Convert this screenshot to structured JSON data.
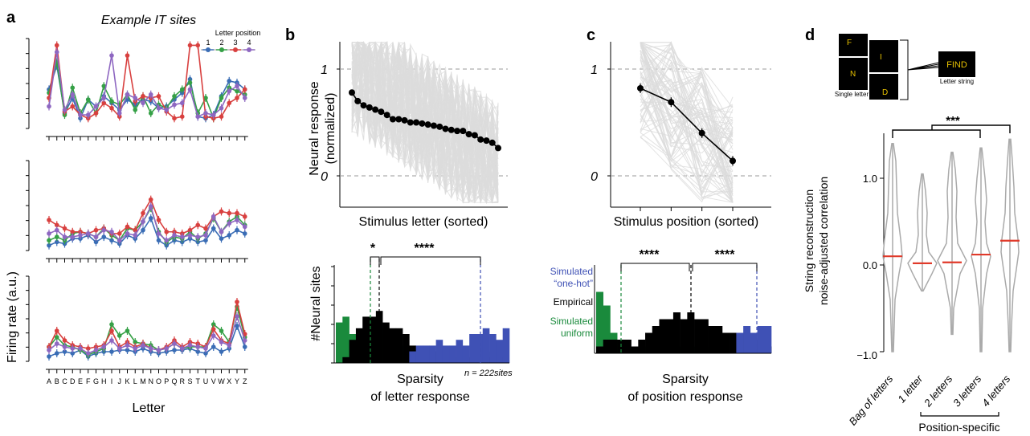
{
  "panels": {
    "a": {
      "label": "a",
      "title": "Example IT sites",
      "legend_title": "Letter position",
      "legend_numbers": [
        "1",
        "2",
        "3",
        "4"
      ],
      "ylabel": "Firing rate (a.u.)",
      "xlabel": "Letter",
      "letters": [
        "A",
        "B",
        "C",
        "D",
        "E",
        "F",
        "G",
        "H",
        "I",
        "J",
        "K",
        "L",
        "M",
        "N",
        "O",
        "P",
        "Q",
        "R",
        "S",
        "T",
        "U",
        "V",
        "W",
        "X",
        "Y",
        "Z"
      ],
      "colors": {
        "1": "#3a6db5",
        "2": "#35a046",
        "3": "#d8403f",
        "4": "#8e67c1"
      }
    },
    "b": {
      "label": "b",
      "ylabel_line1": "Neural response",
      "ylabel_line2": "(normalized)",
      "ytick_1": "1",
      "ytick_0": "0",
      "xlabel": "Stimulus letter (sorted)",
      "hist_ylabel": "#Neural sites",
      "hist_xlabel_line1": "Sparsity",
      "hist_xlabel_line2": "of letter response",
      "n_label": "n = 222sites",
      "sig1": "*",
      "sig2": "****"
    },
    "c": {
      "label": "c",
      "ytick_1": "1",
      "ytick_0": "0",
      "xlabel": "Stimulus position (sorted)",
      "hist_xlabel_line1": "Sparsity",
      "hist_xlabel_line2": "of position response",
      "legend_onehot_1": "Simulated",
      "legend_onehot_2": "“one-hot”",
      "legend_empirical": "Empirical",
      "legend_uniform_1": "Simulated",
      "legend_uniform_2": "uniform",
      "sig1": "****",
      "sig2": "****",
      "colors": {
        "onehot": "#3f51b5",
        "empirical": "#000000",
        "uniform": "#1a8a3c"
      }
    },
    "d": {
      "label": "d",
      "single_letter_label": "Single letter",
      "letter_string_label": "Letter string",
      "letters_shown": [
        "F",
        "I",
        "N",
        "D"
      ],
      "word": "FIND",
      "sig": "***",
      "ylabel_line1": "String reconstruction",
      "ylabel_line2": "noise-adjusted correlation",
      "yticks": [
        "1.0",
        "0.0",
        "−1.0"
      ],
      "categories": [
        "Bag of letters",
        "1 letter",
        "2 letters",
        "3 letters",
        "4 letters"
      ],
      "bracket_label": "Position-specific"
    }
  },
  "chart_data": [
    {
      "type": "line",
      "panel": "a",
      "title": "Example IT sites",
      "xlabel": "Letter",
      "ylabel": "Firing rate (a.u.)",
      "categories": [
        "A",
        "B",
        "C",
        "D",
        "E",
        "F",
        "G",
        "H",
        "I",
        "J",
        "K",
        "L",
        "M",
        "N",
        "O",
        "P",
        "Q",
        "R",
        "S",
        "T",
        "U",
        "V",
        "W",
        "X",
        "Y",
        "Z"
      ],
      "subplots": [
        {
          "series": [
            {
              "name": "1",
              "values": [
                5.0,
                6.4,
                3.6,
                4.5,
                3.3,
                4.4,
                4.0,
                4.6,
                4.2,
                3.8,
                4.4,
                4.1,
                4.4,
                4.3,
                3.9,
                4.0,
                4.4,
                4.8,
                5.6,
                3.4,
                3.3,
                3.5,
                4.6,
                5.5,
                5.4,
                5.0
              ]
            },
            {
              "name": "2",
              "values": [
                4.8,
                6.6,
                3.5,
                5.1,
                3.6,
                4.4,
                3.6,
                5.2,
                4.3,
                4.1,
                4.7,
                3.8,
                4.6,
                3.6,
                4.1,
                3.9,
                4.6,
                5.0,
                5.4,
                3.6,
                4.5,
                3.3,
                4.5,
                5.1,
                4.9,
                4.7
              ]
            },
            {
              "name": "3",
              "values": [
                4.5,
                7.6,
                3.7,
                4.0,
                3.5,
                3.3,
                3.6,
                4.2,
                3.9,
                3.4,
                7.0,
                4.3,
                4.6,
                4.5,
                4.6,
                3.7,
                3.3,
                3.4,
                7.6,
                7.6,
                3.4,
                3.3,
                3.4,
                4.2,
                4.5,
                5.0
              ]
            },
            {
              "name": "4",
              "values": [
                4.0,
                7.2,
                3.8,
                4.7,
                3.5,
                3.5,
                4.0,
                4.5,
                7.0,
                3.6,
                4.7,
                4.5,
                4.2,
                4.7,
                3.9,
                3.8,
                4.1,
                4.2,
                5.0,
                3.4,
                3.6,
                3.5,
                3.9,
                4.9,
                5.2,
                4.5
              ]
            }
          ]
        },
        {
          "series": [
            {
              "name": "1",
              "values": [
                3.0,
                3.2,
                3.1,
                3.4,
                3.4,
                3.6,
                3.2,
                3.5,
                3.3,
                3.1,
                3.6,
                3.4,
                3.9,
                4.6,
                3.3,
                3.0,
                3.3,
                3.2,
                3.4,
                3.2,
                3.3,
                4.0,
                3.4,
                3.6,
                3.9,
                3.7
              ]
            },
            {
              "name": "2",
              "values": [
                3.3,
                3.5,
                3.3,
                3.7,
                3.8,
                3.7,
                3.5,
                4.0,
                3.6,
                3.3,
                4.0,
                3.9,
                4.4,
                5.2,
                3.8,
                3.2,
                3.5,
                3.4,
                3.8,
                3.4,
                3.7,
                4.6,
                3.8,
                4.4,
                4.7,
                4.2
              ]
            },
            {
              "name": "3",
              "values": [
                4.5,
                4.2,
                4.0,
                3.8,
                3.8,
                3.7,
                3.9,
                4.0,
                3.7,
                3.7,
                4.1,
                3.9,
                4.9,
                5.7,
                4.5,
                3.8,
                3.8,
                3.7,
                3.9,
                4.2,
                4.0,
                4.7,
                5.0,
                4.9,
                4.9,
                4.7
              ]
            },
            {
              "name": "4",
              "values": [
                3.7,
                3.9,
                3.5,
                3.5,
                3.6,
                3.7,
                3.5,
                3.9,
                3.8,
                3.3,
                3.7,
                3.6,
                4.4,
                5.3,
                3.7,
                3.3,
                3.6,
                3.5,
                3.6,
                3.5,
                3.6,
                4.7,
                3.8,
                4.3,
                4.5,
                4.1
              ]
            }
          ]
        },
        {
          "series": [
            {
              "name": "1",
              "values": [
                3.0,
                3.2,
                3.3,
                3.2,
                3.4,
                3.0,
                3.2,
                3.3,
                3.3,
                3.4,
                3.4,
                3.3,
                3.5,
                3.3,
                3.2,
                3.3,
                3.4,
                3.4,
                3.5,
                3.3,
                3.2,
                3.6,
                3.3,
                3.5,
                4.9,
                3.6
              ]
            },
            {
              "name": "2",
              "values": [
                3.6,
                4.2,
                3.7,
                3.6,
                3.4,
                3.1,
                3.3,
                3.5,
                5.0,
                4.3,
                4.6,
                3.9,
                3.8,
                3.7,
                3.4,
                3.5,
                3.8,
                3.5,
                3.6,
                3.6,
                3.6,
                5.0,
                4.6,
                3.9,
                6.1,
                4.2
              ]
            },
            {
              "name": "3",
              "values": [
                3.6,
                4.6,
                4.0,
                3.7,
                3.6,
                3.5,
                3.6,
                3.7,
                4.6,
                3.6,
                3.9,
                3.6,
                3.8,
                3.5,
                3.4,
                3.6,
                4.0,
                3.6,
                3.9,
                3.8,
                3.6,
                4.7,
                4.0,
                3.8,
                6.4,
                4.4
              ]
            },
            {
              "name": "4",
              "values": [
                3.4,
                3.8,
                3.6,
                3.5,
                3.5,
                3.2,
                3.4,
                3.6,
                4.0,
                3.5,
                3.7,
                3.5,
                3.7,
                3.5,
                3.4,
                3.5,
                3.8,
                3.5,
                3.7,
                3.6,
                3.5,
                4.3,
                3.9,
                3.7,
                5.5,
                4.0
              ]
            }
          ]
        }
      ]
    },
    {
      "type": "line",
      "panel": "b",
      "xlabel": "Stimulus letter (sorted)",
      "ylabel": "Neural response (normalized)",
      "ylim": [
        -0.2,
        1.25
      ],
      "x": [
        1,
        2,
        3,
        4,
        5,
        6,
        7,
        8,
        9,
        10,
        11,
        12,
        13,
        14,
        15,
        16,
        17,
        18,
        19,
        20,
        21,
        22,
        23,
        24,
        25,
        26
      ],
      "values": [
        0.78,
        0.7,
        0.66,
        0.64,
        0.62,
        0.6,
        0.57,
        0.53,
        0.53,
        0.52,
        0.5,
        0.5,
        0.49,
        0.48,
        0.47,
        0.46,
        0.44,
        0.43,
        0.42,
        0.42,
        0.39,
        0.38,
        0.34,
        0.33,
        0.31,
        0.26
      ]
    },
    {
      "type": "bar",
      "panel": "b",
      "xlabel": "Sparsity of letter response",
      "ylabel": "#Neural sites",
      "series": [
        {
          "name": "Simulated uniform",
          "values": [
            7,
            8,
            5,
            4,
            6,
            7,
            6,
            5,
            3,
            3,
            2,
            2,
            2,
            2,
            2,
            2,
            2,
            1,
            1,
            1,
            1,
            1,
            2,
            1,
            1,
            0
          ]
        },
        {
          "name": "Empirical",
          "values": [
            0,
            1,
            4,
            6,
            8,
            8,
            9,
            7,
            6,
            6,
            5,
            3,
            2,
            2,
            2,
            1,
            2,
            1,
            1,
            1,
            1,
            1,
            1,
            1,
            1,
            0
          ]
        },
        {
          "name": "Simulated one-hot",
          "values": [
            0,
            0,
            0,
            0,
            0,
            0,
            0,
            0,
            0,
            0,
            0,
            2,
            3,
            3,
            3,
            4,
            3,
            3,
            4,
            3,
            5,
            5,
            6,
            5,
            4,
            6
          ]
        }
      ]
    },
    {
      "type": "line",
      "panel": "c",
      "xlabel": "Stimulus position (sorted)",
      "ylim": [
        -0.2,
        1.25
      ],
      "x": [
        1,
        2,
        3,
        4
      ],
      "values": [
        0.82,
        0.69,
        0.4,
        0.14
      ]
    },
    {
      "type": "bar",
      "panel": "c",
      "xlabel": "Sparsity of position response",
      "series": [
        {
          "name": "Simulated uniform",
          "values": [
            9,
            7,
            3,
            1,
            1,
            1,
            1,
            1,
            1,
            1,
            1,
            1,
            1,
            1,
            1,
            1,
            0,
            0,
            0,
            0,
            0,
            0,
            0,
            0,
            0
          ]
        },
        {
          "name": "Empirical",
          "values": [
            1,
            2,
            2,
            2,
            2,
            1,
            2,
            3,
            4,
            5,
            5,
            6,
            5,
            6,
            5,
            5,
            4,
            4,
            3,
            3,
            3,
            3,
            2,
            2,
            1
          ]
        },
        {
          "name": "Simulated one-hot",
          "values": [
            0,
            0,
            0,
            0,
            0,
            0,
            0,
            0,
            0,
            0,
            0,
            0,
            0,
            0,
            0,
            0,
            0,
            0,
            0,
            0,
            3,
            4,
            3,
            4,
            4
          ]
        }
      ]
    },
    {
      "type": "violin",
      "panel": "d",
      "ylabel": "String reconstruction noise-adjusted correlation",
      "ylim": [
        -1.0,
        1.5
      ],
      "categories": [
        "Bag of letters",
        "1 letter",
        "2 letters",
        "3 letters",
        "4 letters"
      ],
      "medians": [
        0.1,
        0.02,
        0.03,
        0.12,
        0.28
      ],
      "ranges": [
        [
          -1.0,
          1.4
        ],
        [
          -0.3,
          1.05
        ],
        [
          -0.8,
          1.3
        ],
        [
          -1.0,
          1.35
        ],
        [
          -1.0,
          1.45
        ]
      ]
    }
  ]
}
